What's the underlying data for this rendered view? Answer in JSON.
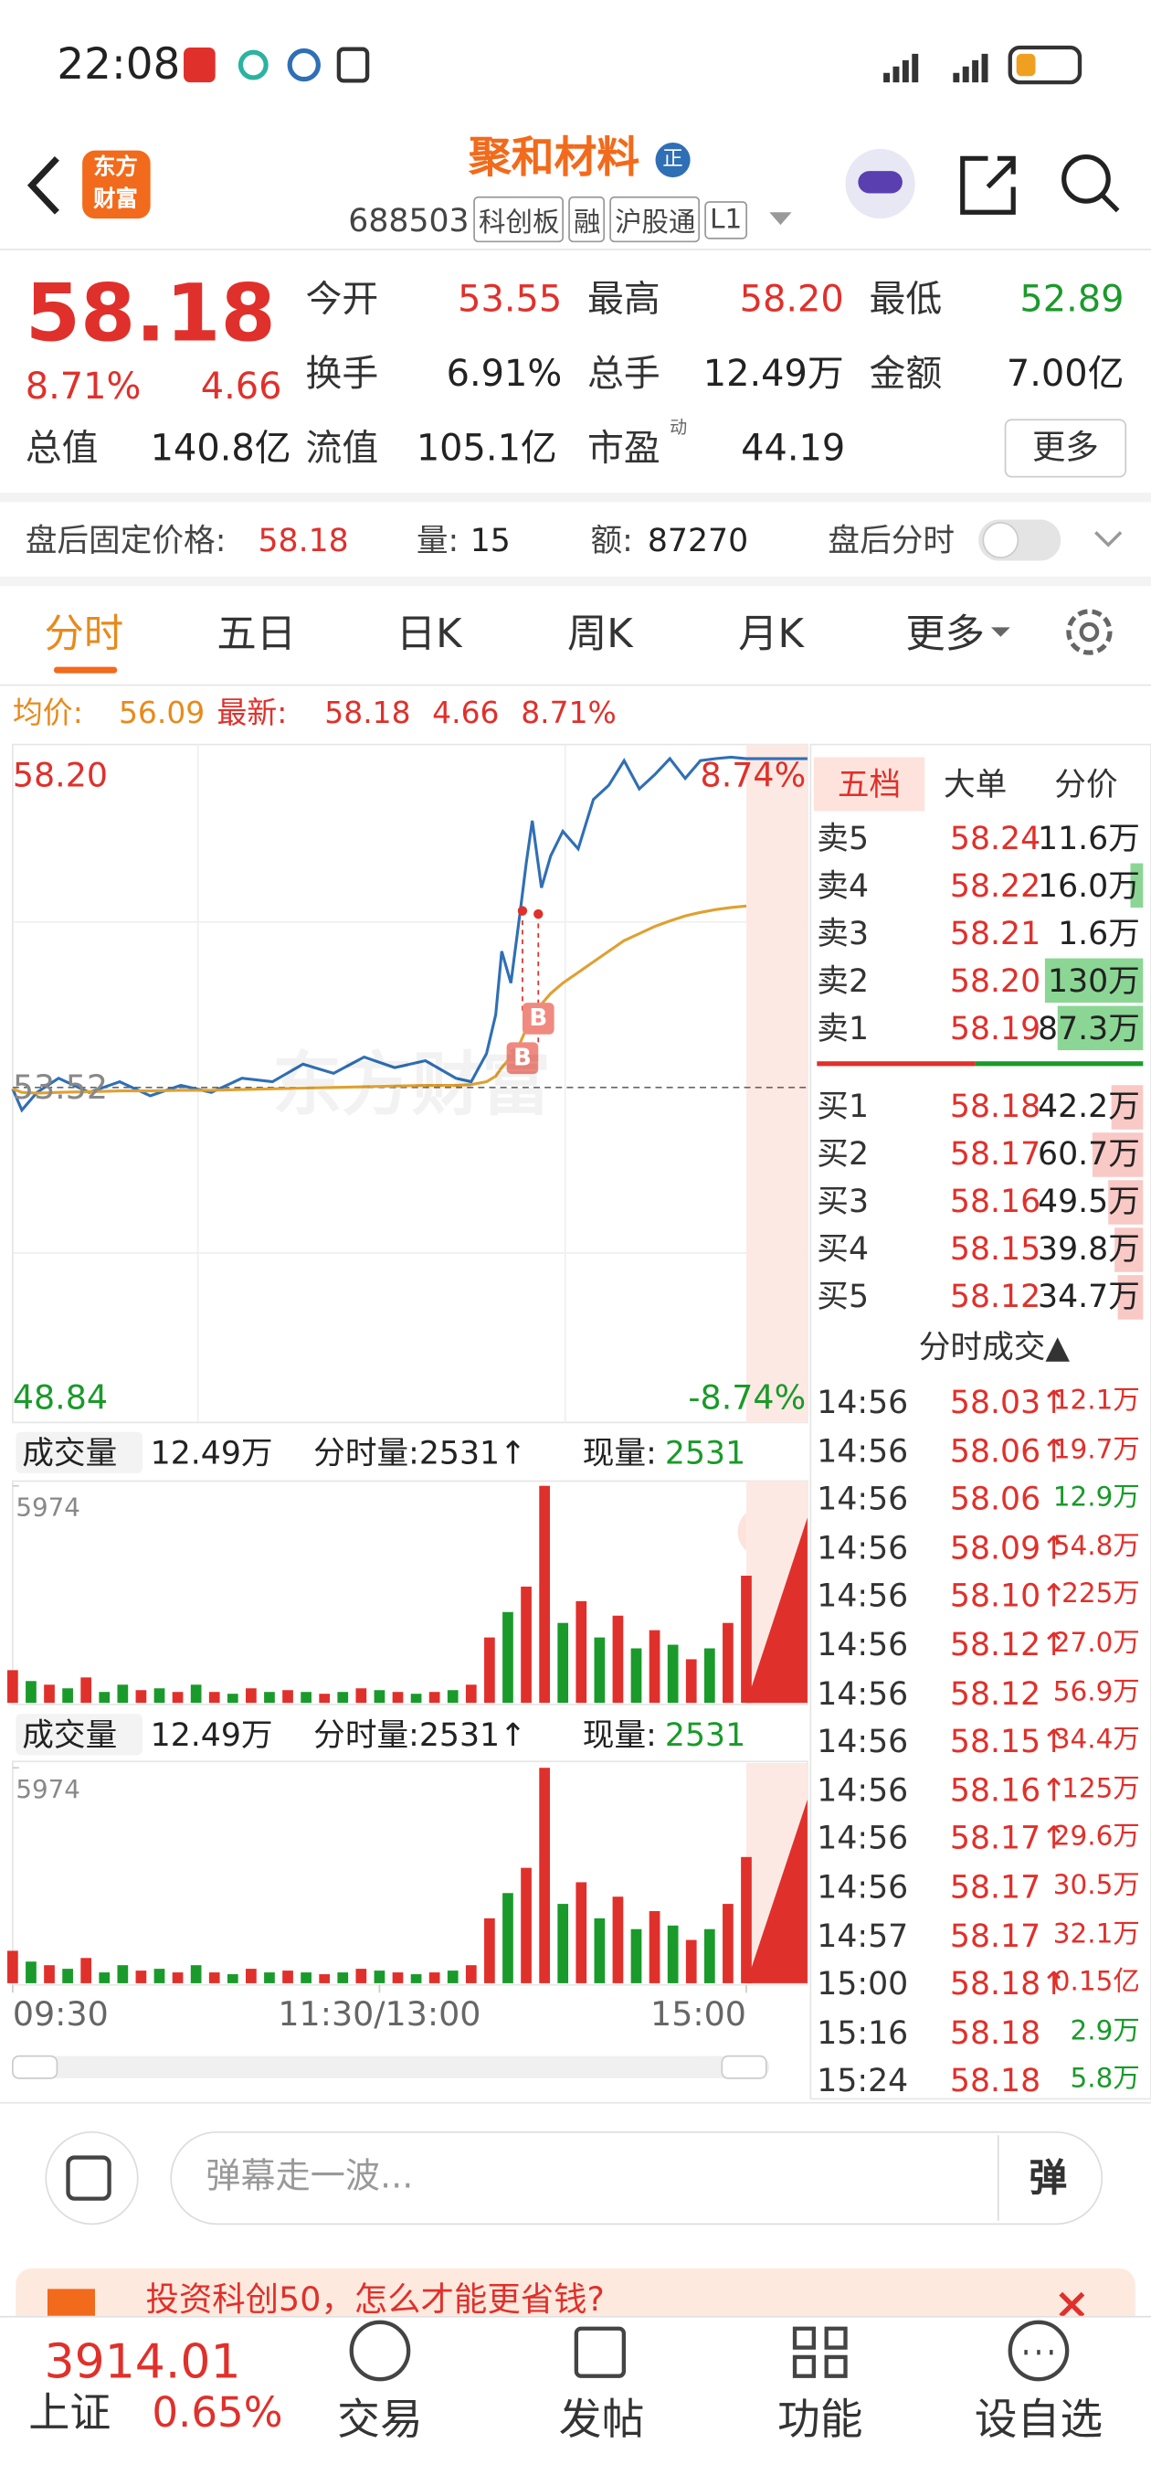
{
  "status_bar": {
    "time": "22:08"
  },
  "header": {
    "logo": [
      "东方",
      "财富"
    ],
    "stock_name": "聚和材料",
    "badge": "正",
    "code": "688503",
    "tags": [
      "科创板",
      "融",
      "沪股通",
      "L1"
    ]
  },
  "quote": {
    "price": "58.18",
    "change_pct": "8.71%",
    "change": "4.66",
    "fields": [
      {
        "label": "今开",
        "value": "53.55",
        "color": "#e0302b"
      },
      {
        "label": "最高",
        "value": "58.20",
        "color": "#e0302b"
      },
      {
        "label": "最低",
        "value": "52.89",
        "color": "#1a9a2a"
      },
      {
        "label": "换手",
        "value": "6.91%",
        "color": "#222222"
      },
      {
        "label": "总手",
        "value": "12.49万",
        "color": "#222222"
      },
      {
        "label": "金额",
        "value": "7.00亿",
        "color": "#222222"
      },
      {
        "label": "总值",
        "value": "140.8亿",
        "color": "#222222"
      },
      {
        "label": "流值",
        "value": "105.1亿",
        "color": "#222222"
      },
      {
        "label": "市盈",
        "value": "44.19",
        "color": "#222222"
      }
    ],
    "pe_mark": "动",
    "more": "更多"
  },
  "after_hours": {
    "label": "盘后固定价格:",
    "price": "58.18",
    "volume_label": "量:",
    "volume": "15",
    "amount_label": "额:",
    "amount": "87270",
    "timeshare": "盘后分时"
  },
  "tabs": [
    "分时",
    "五日",
    "日K",
    "周K",
    "月K",
    "更多"
  ],
  "chart_info": {
    "avg_label": "均价:",
    "avg": "56.09",
    "latest_label": "最新:",
    "latest": "58.18",
    "change": "4.66",
    "change_pct": "8.71%"
  },
  "watermark": "东方财富",
  "chart_data": [
    {
      "type": "line",
      "x": [
        0,
        3,
        8,
        15,
        25,
        35,
        45,
        55,
        65,
        75,
        85,
        95,
        105,
        115,
        125,
        135,
        145,
        150,
        155,
        158,
        160,
        163,
        166,
        168,
        170,
        173,
        176,
        180,
        185,
        190,
        195,
        200,
        205,
        210,
        215,
        220,
        225,
        230,
        235,
        240,
        250,
        260
      ],
      "xlim": [
        0,
        260
      ],
      "xticks": [
        {
          "value": 0,
          "label": "09:30"
        },
        {
          "value": 120,
          "label": "11:30/13:00"
        },
        {
          "value": 240,
          "label": "15:00"
        }
      ],
      "ylim": [
        48.84,
        58.2
      ],
      "yticks": [
        {
          "value": 58.2,
          "label": "58.20"
        },
        53.52,
        48.84
      ],
      "y2lim": [
        -8.74,
        8.74
      ],
      "y2ticks": [
        {
          "value": 8.74,
          "label": "8.74%"
        },
        {
          "value": -8.74,
          "label": "-8.74%"
        }
      ],
      "series": [
        {
          "color": "#2f6fb5",
          "values": [
            53.5,
            53.2,
            53.45,
            53.65,
            53.45,
            53.6,
            53.4,
            53.55,
            53.45,
            53.65,
            53.6,
            53.85,
            53.72,
            53.95,
            53.8,
            53.9,
            53.65,
            53.6,
            54.0,
            54.55,
            55.45,
            55.0,
            56.0,
            56.7,
            57.3,
            56.35,
            56.8,
            57.15,
            56.9,
            57.6,
            57.8,
            58.15,
            57.75,
            57.95,
            58.18,
            57.9,
            58.15,
            58.18,
            58.2,
            58.18,
            58.18,
            58.18
          ]
        },
        {
          "color": "#e0a030",
          "values": [
            53.5,
            53.45,
            53.44,
            53.45,
            53.46,
            53.47,
            53.47,
            53.48,
            53.48,
            53.49,
            53.5,
            53.51,
            53.52,
            53.53,
            53.54,
            53.55,
            53.55,
            53.56,
            53.6,
            53.68,
            53.8,
            53.95,
            54.15,
            54.35,
            54.55,
            54.7,
            54.85,
            55.0,
            55.15,
            55.3,
            55.45,
            55.6,
            55.7,
            55.8,
            55.88,
            55.95,
            56.0,
            56.04,
            56.07,
            56.09,
            null,
            null
          ]
        }
      ],
      "annotations": [
        "B",
        "B"
      ]
    },
    {
      "type": "bar",
      "indicator": "成交量",
      "total": "12.49万",
      "minute_volume": "分时量:2531↑",
      "current_label": "现量:",
      "current": "2531",
      "x": [
        0,
        6,
        12,
        18,
        24,
        30,
        36,
        42,
        48,
        54,
        60,
        66,
        72,
        78,
        84,
        90,
        96,
        102,
        108,
        114,
        120,
        126,
        132,
        138,
        144,
        150,
        156,
        162,
        168,
        174,
        180,
        186,
        192,
        198,
        204,
        210,
        216,
        222,
        228,
        234,
        240
      ],
      "xlim": [
        0,
        260
      ],
      "ylim": [
        0,
        5974
      ],
      "yticks": [
        5974
      ],
      "values": [
        900,
        600,
        500,
        400,
        700,
        300,
        500,
        350,
        400,
        300,
        500,
        300,
        250,
        400,
        300,
        350,
        300,
        250,
        300,
        400,
        350,
        300,
        250,
        300,
        350,
        500,
        1800,
        2500,
        3200,
        5974,
        2200,
        2800,
        1800,
        2400,
        1500,
        2000,
        1600,
        1200,
        1500,
        2200,
        3500
      ],
      "colors": [
        "#e0302b",
        "#1a9a2a",
        "#e0302b",
        "#1a9a2a",
        "#e0302b",
        "#1a9a2a",
        "#1a9a2a",
        "#e0302b",
        "#1a9a2a",
        "#e0302b",
        "#1a9a2a",
        "#e0302b",
        "#1a9a2a",
        "#e0302b",
        "#1a9a2a",
        "#e0302b",
        "#1a9a2a",
        "#e0302b",
        "#1a9a2a",
        "#e0302b",
        "#1a9a2a",
        "#e0302b",
        "#1a9a2a",
        "#e0302b",
        "#1a9a2a",
        "#e0302b",
        "#e0302b",
        "#1a9a2a",
        "#e0302b",
        "#e0302b",
        "#1a9a2a",
        "#e0302b",
        "#1a9a2a",
        "#e0302b",
        "#1a9a2a",
        "#e0302b",
        "#1a9a2a",
        "#e0302b",
        "#1a9a2a",
        "#e0302b",
        "#e0302b"
      ]
    },
    {
      "type": "bar",
      "indicator": "成交量",
      "total": "12.49万",
      "minute_volume": "分时量:2531↑",
      "current_label": "现量:",
      "current": "2531",
      "x": [
        0,
        6,
        12,
        18,
        24,
        30,
        36,
        42,
        48,
        54,
        60,
        66,
        72,
        78,
        84,
        90,
        96,
        102,
        108,
        114,
        120,
        126,
        132,
        138,
        144,
        150,
        156,
        162,
        168,
        174,
        180,
        186,
        192,
        198,
        204,
        210,
        216,
        222,
        228,
        234,
        240
      ],
      "xlim": [
        0,
        260
      ],
      "ylim": [
        0,
        5974
      ],
      "yticks": [
        5974
      ],
      "values": [
        900,
        600,
        500,
        400,
        700,
        300,
        500,
        350,
        400,
        300,
        500,
        300,
        250,
        400,
        300,
        350,
        300,
        250,
        300,
        400,
        350,
        300,
        250,
        300,
        350,
        500,
        1800,
        2500,
        3200,
        5974,
        2200,
        2800,
        1800,
        2400,
        1500,
        2000,
        1600,
        1200,
        1500,
        2200,
        3500
      ],
      "colors": [
        "#e0302b",
        "#1a9a2a",
        "#e0302b",
        "#1a9a2a",
        "#e0302b",
        "#1a9a2a",
        "#1a9a2a",
        "#e0302b",
        "#1a9a2a",
        "#e0302b",
        "#1a9a2a",
        "#e0302b",
        "#1a9a2a",
        "#e0302b",
        "#1a9a2a",
        "#e0302b",
        "#1a9a2a",
        "#e0302b",
        "#1a9a2a",
        "#e0302b",
        "#1a9a2a",
        "#e0302b",
        "#1a9a2a",
        "#e0302b",
        "#1a9a2a",
        "#e0302b",
        "#e0302b",
        "#1a9a2a",
        "#e0302b",
        "#e0302b",
        "#1a9a2a",
        "#e0302b",
        "#1a9a2a",
        "#e0302b",
        "#1a9a2a",
        "#e0302b",
        "#1a9a2a",
        "#e0302b",
        "#1a9a2a",
        "#e0302b",
        "#e0302b"
      ]
    }
  ],
  "order_book": {
    "tabs": [
      "五档",
      "大单",
      "分价"
    ],
    "asks": [
      {
        "label": "卖5",
        "price": "58.24",
        "volume": "11.6万"
      },
      {
        "label": "卖4",
        "price": "58.22",
        "volume": "16.0万"
      },
      {
        "label": "卖3",
        "price": "58.21",
        "volume": "1.6万"
      },
      {
        "label": "卖2",
        "price": "58.20",
        "volume": "130万"
      },
      {
        "label": "卖1",
        "price": "58.19",
        "volume": "87.3万"
      }
    ],
    "bids": [
      {
        "label": "买1",
        "price": "58.18",
        "volume": "42.2万"
      },
      {
        "label": "买2",
        "price": "58.17",
        "volume": "60.7万"
      },
      {
        "label": "买3",
        "price": "58.16",
        "volume": "49.5万"
      },
      {
        "label": "买4",
        "price": "58.15",
        "volume": "39.8万"
      },
      {
        "label": "买5",
        "price": "58.12",
        "volume": "34.7万"
      }
    ]
  },
  "trades": {
    "title": "分时成交▲",
    "rows": [
      {
        "time": "14:56",
        "price": "58.03↑",
        "volume": "12.1万",
        "color": "#e0302b"
      },
      {
        "time": "14:56",
        "price": "58.06↑",
        "volume": "19.7万",
        "color": "#e0302b"
      },
      {
        "time": "14:56",
        "price": "58.06",
        "volume": "12.9万",
        "color": "#1a9a2a"
      },
      {
        "time": "14:56",
        "price": "58.09↑",
        "volume": "54.8万",
        "color": "#e0302b"
      },
      {
        "time": "14:56",
        "price": "58.10↑",
        "volume": "225万",
        "color": "#e0302b"
      },
      {
        "time": "14:56",
        "price": "58.12↑",
        "volume": "27.0万",
        "color": "#e0302b"
      },
      {
        "time": "14:56",
        "price": "58.12",
        "volume": "56.9万",
        "color": "#e0302b"
      },
      {
        "time": "14:56",
        "price": "58.15↑",
        "volume": "34.4万",
        "color": "#e0302b"
      },
      {
        "time": "14:56",
        "price": "58.16↑",
        "volume": "125万",
        "color": "#e0302b"
      },
      {
        "time": "14:56",
        "price": "58.17↑",
        "volume": "29.6万",
        "color": "#e0302b"
      },
      {
        "time": "14:56",
        "price": "58.17",
        "volume": "30.5万",
        "color": "#e0302b"
      },
      {
        "time": "14:57",
        "price": "58.17",
        "volume": "32.1万",
        "color": "#e0302b"
      },
      {
        "time": "15:00",
        "price": "58.18↑",
        "volume": "0.15亿",
        "color": "#e0302b"
      },
      {
        "time": "15:16",
        "price": "58.18",
        "volume": "2.9万",
        "color": "#1a9a2a"
      },
      {
        "time": "15:24",
        "price": "58.18",
        "volume": "5.8万",
        "color": "#1a9a2a"
      }
    ]
  },
  "comment_bar": {
    "placeholder": "弹幕走一波...",
    "button": "弹"
  },
  "banner": {
    "text": "投资科创50，怎么才能更省钱?"
  },
  "bottom_nav": {
    "index_value": "3914.01",
    "index_name": "上证",
    "index_change": "0.65%",
    "items": [
      "交易",
      "发帖",
      "功能",
      "设自选"
    ]
  }
}
